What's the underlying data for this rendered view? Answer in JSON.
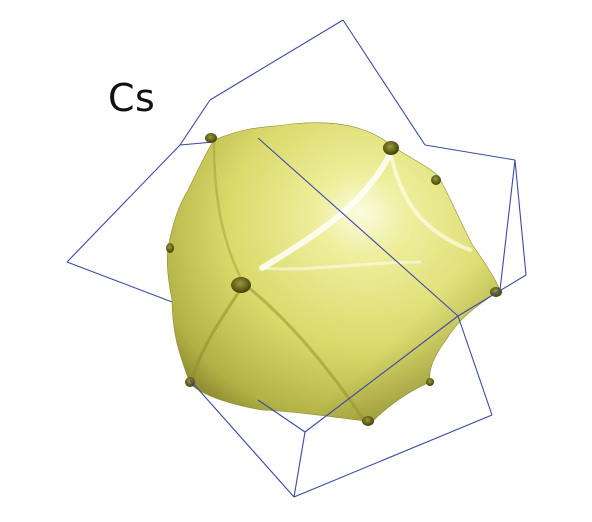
{
  "figure": {
    "element_symbol": "Cs",
    "surface_color": "#d9d96a",
    "surface_shadow_color": "#6f6e1e",
    "surface_highlight_color": "#fbfbe0",
    "zone_edge_color": "#3b4aa8",
    "background_color": "#ffffff"
  }
}
